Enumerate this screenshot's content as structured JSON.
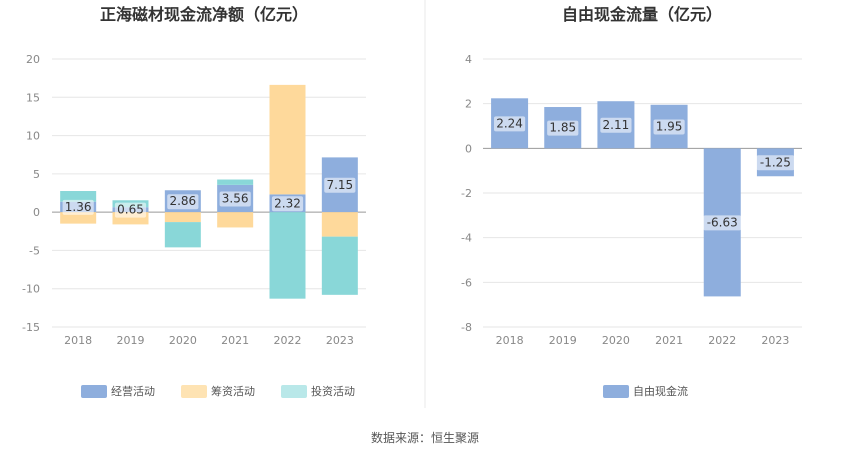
{
  "source_note": "数据来源：恒生聚源",
  "chart_data": [
    {
      "type": "bar",
      "stacked": true,
      "title": "正海磁材现金流净额（亿元）",
      "categories": [
        "2018",
        "2019",
        "2020",
        "2021",
        "2022",
        "2023"
      ],
      "ylim": [
        -15,
        20
      ],
      "yticks": [
        -15,
        -10,
        -5,
        0,
        5,
        10,
        15,
        20
      ],
      "grid": true,
      "legend_position": "bottom",
      "series": [
        {
          "name": "经营活动",
          "color": "#8eaedd",
          "values": [
            1.36,
            0.65,
            2.86,
            3.56,
            2.32,
            7.15
          ]
        },
        {
          "name": "筹资活动",
          "color": "#fed99b",
          "values": [
            -1.5,
            -1.6,
            -1.3,
            -2.0,
            14.3,
            -3.2
          ]
        },
        {
          "name": "投资活动",
          "color": "#89d7d8",
          "values": [
            1.4,
            0.9,
            -3.3,
            0.7,
            -11.3,
            -7.6
          ]
        }
      ],
      "data_labels": [
        "1.36",
        "0.65",
        "2.86",
        "3.56",
        "2.32",
        "7.15"
      ]
    },
    {
      "type": "bar",
      "title": "自由现金流量（亿元）",
      "categories": [
        "2018",
        "2019",
        "2020",
        "2021",
        "2022",
        "2023"
      ],
      "ylim": [
        -8,
        4
      ],
      "yticks": [
        -8,
        -6,
        -4,
        -2,
        0,
        2,
        4
      ],
      "grid": true,
      "legend_position": "bottom",
      "series": [
        {
          "name": "自由现金流",
          "color": "#8eaedd",
          "values": [
            2.24,
            1.85,
            2.11,
            1.95,
            -6.63,
            -1.25
          ]
        }
      ],
      "data_labels": [
        "2.24",
        "1.85",
        "2.11",
        "1.95",
        "-6.63",
        "-1.25"
      ]
    }
  ]
}
